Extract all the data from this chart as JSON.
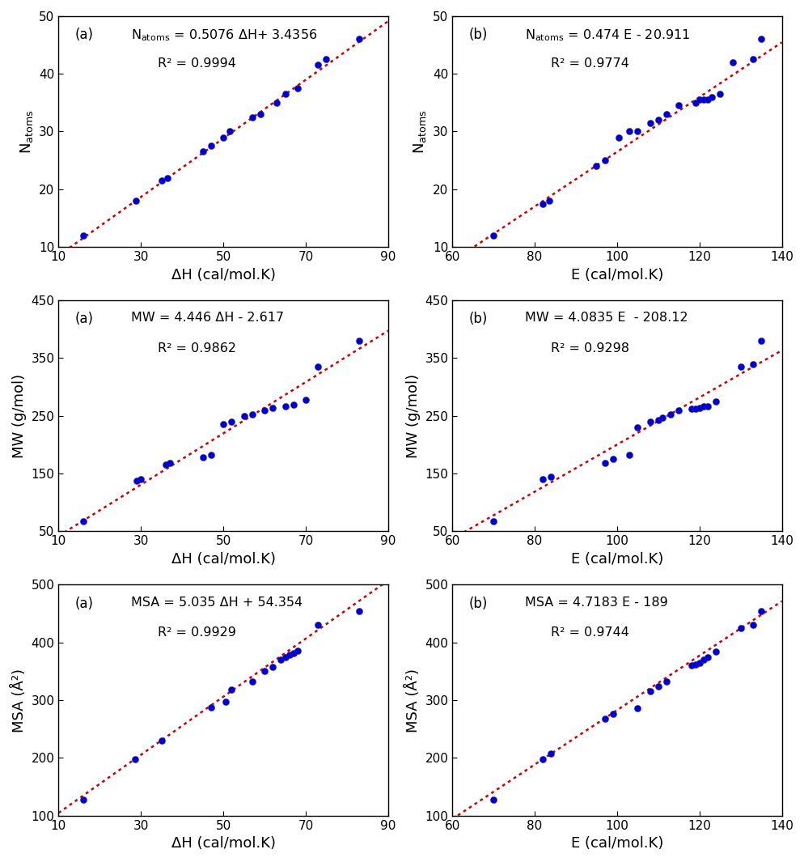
{
  "plots": [
    {
      "row": 0,
      "col": 0,
      "panel": "(a)",
      "eq_line1": "N",
      "eq_atoms": "atoms",
      "eq_line1_rest": " = 0.5076 ΔH+ 3.4356",
      "r2": "R² = 0.9994",
      "slope": 0.5076,
      "intercept": 3.4356,
      "xlabel": "ΔH (cal/mol.K)",
      "ylabel": "N",
      "ylabel_sub": "atoms",
      "xlim": [
        10,
        90
      ],
      "ylim": [
        10,
        50
      ],
      "xticks": [
        10,
        30,
        50,
        70,
        90
      ],
      "yticks": [
        10,
        20,
        30,
        40,
        50
      ],
      "x_data": [
        16.0,
        28.8,
        35.0,
        36.5,
        45.0,
        47.0,
        50.0,
        51.5,
        57.0,
        59.0,
        63.0,
        65.0,
        68.0,
        73.0,
        75.0,
        83.0
      ],
      "y_data": [
        12.0,
        18.0,
        21.5,
        22.0,
        26.5,
        27.5,
        29.0,
        30.0,
        32.5,
        33.0,
        35.0,
        36.5,
        37.5,
        41.5,
        42.5,
        46.0
      ]
    },
    {
      "row": 0,
      "col": 1,
      "panel": "(b)",
      "eq_line1": "N",
      "eq_atoms": "atoms",
      "eq_line1_rest": " = 0.474 E - 20.911",
      "r2": "R² = 0.9774",
      "slope": 0.474,
      "intercept": -20.911,
      "xlabel": "E (cal/mol.K)",
      "ylabel": "N",
      "ylabel_sub": "atoms",
      "xlim": [
        60,
        140
      ],
      "ylim": [
        10,
        50
      ],
      "xticks": [
        60,
        80,
        100,
        120,
        140
      ],
      "yticks": [
        10,
        20,
        30,
        40,
        50
      ],
      "x_data": [
        70.0,
        82.0,
        83.5,
        95.0,
        97.0,
        100.5,
        103.0,
        105.0,
        108.0,
        110.0,
        112.0,
        115.0,
        119.0,
        120.0,
        121.0,
        122.0,
        123.0,
        125.0,
        128.0,
        133.0,
        135.0
      ],
      "y_data": [
        12.0,
        17.5,
        18.0,
        24.0,
        25.0,
        29.0,
        30.0,
        30.0,
        31.5,
        32.0,
        33.0,
        34.5,
        35.0,
        35.5,
        35.5,
        35.5,
        36.0,
        36.5,
        42.0,
        42.5,
        46.0
      ]
    },
    {
      "row": 1,
      "col": 0,
      "panel": "(a)",
      "eq_line1": "MW = 4.446 ΔH - 2.617",
      "eq_atoms": "",
      "eq_line1_rest": "",
      "r2": "R² = 0.9862",
      "slope": 4.446,
      "intercept": -2.617,
      "xlabel": "ΔH (cal/mol.K)",
      "ylabel": "MW (g/mol)",
      "ylabel_sub": "",
      "xlim": [
        10,
        90
      ],
      "ylim": [
        50,
        450
      ],
      "xticks": [
        10,
        30,
        50,
        70,
        90
      ],
      "yticks": [
        50,
        150,
        250,
        350,
        450
      ],
      "x_data": [
        16.0,
        29.0,
        30.0,
        36.0,
        37.0,
        45.0,
        47.0,
        50.0,
        52.0,
        55.0,
        57.0,
        60.0,
        62.0,
        65.0,
        67.0,
        70.0,
        73.0,
        83.0
      ],
      "y_data": [
        68.0,
        138.0,
        140.0,
        165.0,
        168.0,
        178.0,
        183.0,
        236.0,
        240.0,
        250.0,
        252.0,
        260.0,
        264.0,
        266.0,
        270.0,
        278.0,
        335.0,
        380.0
      ]
    },
    {
      "row": 1,
      "col": 1,
      "panel": "(b)",
      "eq_line1": "MW = 4.0835 E  - 208.12",
      "eq_atoms": "",
      "eq_line1_rest": "",
      "r2": "R² = 0.9298",
      "slope": 4.0835,
      "intercept": -208.12,
      "xlabel": "E (cal/mol.K)",
      "ylabel": "MW (g/mol)",
      "ylabel_sub": "",
      "xlim": [
        60,
        140
      ],
      "ylim": [
        50,
        450
      ],
      "xticks": [
        60,
        80,
        100,
        120,
        140
      ],
      "yticks": [
        50,
        150,
        250,
        350,
        450
      ],
      "x_data": [
        70.0,
        82.0,
        84.0,
        97.0,
        99.0,
        103.0,
        105.0,
        108.0,
        110.0,
        111.0,
        113.0,
        115.0,
        118.0,
        119.0,
        120.0,
        121.0,
        122.0,
        124.0,
        130.0,
        133.0,
        135.0
      ],
      "y_data": [
        68.0,
        140.0,
        145.0,
        168.0,
        175.0,
        183.0,
        230.0,
        240.0,
        243.0,
        247.0,
        252.0,
        260.0,
        262.0,
        263.0,
        264.0,
        266.0,
        267.0,
        275.0,
        335.0,
        340.0,
        380.0
      ]
    },
    {
      "row": 2,
      "col": 0,
      "panel": "(a)",
      "eq_line1": "MSA = 5.035 ΔH + 54.354",
      "eq_atoms": "",
      "eq_line1_rest": "",
      "r2": "R² = 0.9929",
      "slope": 5.035,
      "intercept": 54.354,
      "xlabel": "ΔH (cal/mol.K)",
      "ylabel": "MSA (Å²)",
      "ylabel_sub": "",
      "xlim": [
        10,
        90
      ],
      "ylim": [
        100,
        500
      ],
      "xticks": [
        10,
        30,
        50,
        70,
        90
      ],
      "yticks": [
        100,
        200,
        300,
        400,
        500
      ],
      "x_data": [
        16.0,
        28.5,
        35.0,
        47.0,
        50.5,
        52.0,
        57.0,
        60.0,
        62.0,
        64.0,
        65.0,
        66.0,
        67.0,
        68.0,
        73.0,
        83.0
      ],
      "y_data": [
        128.0,
        198.0,
        230.0,
        288.0,
        298.0,
        318.0,
        332.0,
        350.0,
        358.0,
        370.0,
        375.0,
        378.0,
        382.0,
        385.0,
        430.0,
        455.0
      ]
    },
    {
      "row": 2,
      "col": 1,
      "panel": "(b)",
      "eq_line1": "MSA = 4.7183 E - 189",
      "eq_atoms": "",
      "eq_line1_rest": "",
      "r2": "R² = 0.9744",
      "slope": 4.7183,
      "intercept": -189.0,
      "xlabel": "E (cal/mol.K)",
      "ylabel": "MSA (Å²)",
      "ylabel_sub": "",
      "xlim": [
        60,
        140
      ],
      "ylim": [
        100,
        500
      ],
      "xticks": [
        60,
        80,
        100,
        120,
        140
      ],
      "yticks": [
        100,
        200,
        300,
        400,
        500
      ],
      "x_data": [
        70.0,
        82.0,
        84.0,
        97.0,
        99.0,
        105.0,
        108.0,
        110.0,
        112.0,
        118.0,
        119.0,
        120.0,
        121.0,
        122.0,
        124.0,
        130.0,
        133.0,
        135.0
      ],
      "y_data": [
        128.0,
        198.0,
        208.0,
        268.0,
        276.0,
        286.0,
        316.0,
        324.0,
        332.0,
        360.0,
        362.0,
        365.0,
        370.0,
        375.0,
        384.0,
        425.0,
        430.0,
        455.0
      ]
    }
  ],
  "dot_color": "#0000CC",
  "line_color": "#CC0000",
  "dot_size": 35,
  "line_width": 1.8,
  "bg_color": "#FFFFFF",
  "panel_label_fontsize": 12,
  "equation_fontsize": 11.5,
  "axis_label_fontsize": 13,
  "tick_label_fontsize": 11
}
